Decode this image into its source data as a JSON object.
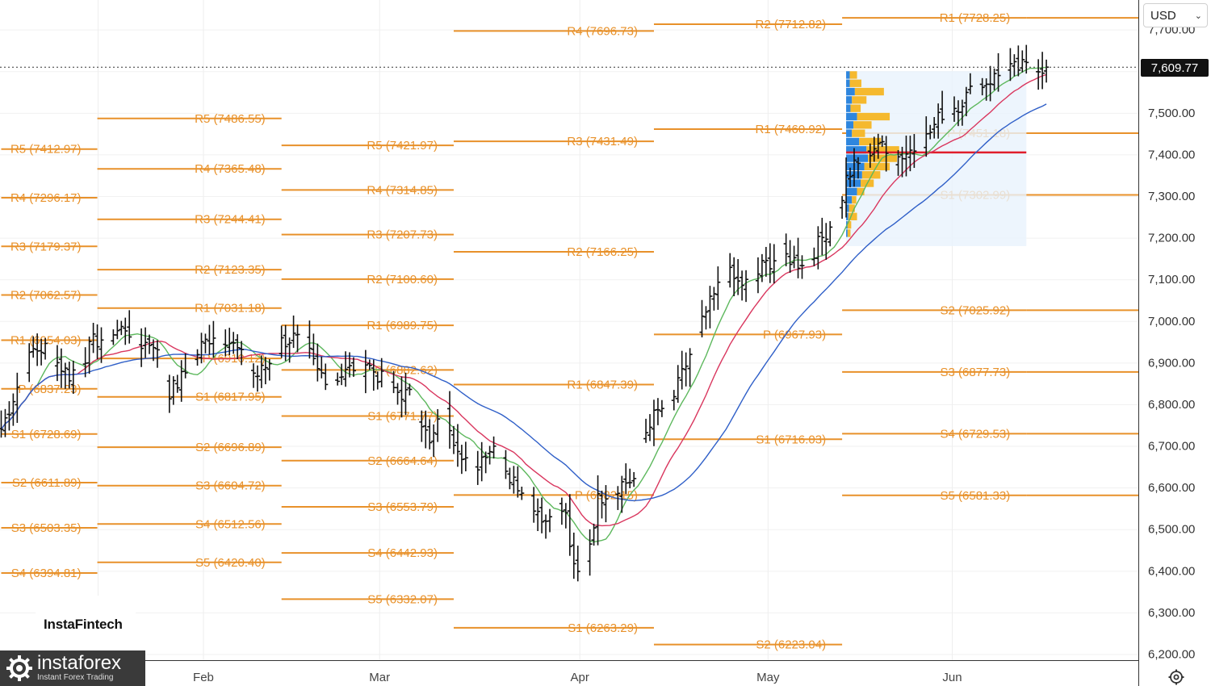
{
  "currency_selector": {
    "value": "USD",
    "icon": "chevron-down-icon"
  },
  "last_price": "7,609.77",
  "watermark": "InstaFintech",
  "logo": {
    "name": "instaforex",
    "tagline": "Instant Forex Trading"
  },
  "settings_icon": "gear-icon",
  "colors": {
    "pivot": "#e8912a",
    "ma_fast": "#5db85d",
    "ma_mid": "#d9365e",
    "ma_slow": "#2f5fc8",
    "poc": "#e01e2b",
    "vp_blue": "#2e86de",
    "vp_yellow": "#f5b92e",
    "bars": "#111111"
  },
  "chart_data": {
    "type": "bar",
    "subtype": "ohlc-with-pivot-levels",
    "y_range": [
      6180,
      7800
    ],
    "y_ticks": [
      "7,700.00",
      "7,600.00",
      "7,500.00",
      "7,400.00",
      "7,300.00",
      "7,200.00",
      "7,100.00",
      "7,000.00",
      "6,900.00",
      "6,800.00",
      "6,700.00",
      "6,600.00",
      "6,500.00",
      "6,400.00",
      "6,300.00",
      "6,200.00"
    ],
    "y_tick_values": [
      7700,
      7600,
      7500,
      7400,
      7300,
      7200,
      7100,
      7000,
      6900,
      6800,
      6700,
      6600,
      6500,
      6400,
      6300,
      6200
    ],
    "x_ticks": [
      "Feb",
      "Mar",
      "Apr",
      "May",
      "Jun"
    ],
    "x_tick_bars": [
      50.5,
      94.5,
      144.5,
      191.5,
      237.5
    ],
    "bar_count": 286,
    "last_price": 7609.77,
    "pivot_periods": [
      {
        "start_bar": 0,
        "end_bar": 24,
        "levels": [
          {
            "label": "R5 (7412.97)",
            "value": 7412.97
          },
          {
            "label": "R4 (7296.17)",
            "value": 7296.17
          },
          {
            "label": "R3 (7179.37)",
            "value": 7179.37
          },
          {
            "label": "R2 (7062.57)",
            "value": 7062.57
          },
          {
            "label": "R1 (6954.03)",
            "value": 6954.03
          },
          {
            "label": "P (6837.23)",
            "value": 6837.23
          },
          {
            "label": "S1 (6728.69)",
            "value": 6728.69
          },
          {
            "label": "S2 (6611.89)",
            "value": 6611.89
          },
          {
            "label": "S3 (6503.35)",
            "value": 6503.35
          },
          {
            "label": "S4 (6394.81)",
            "value": 6394.81
          }
        ]
      },
      {
        "start_bar": 24,
        "end_bar": 70,
        "levels": [
          {
            "label": "R5 (7486.55)",
            "value": 7486.55
          },
          {
            "label": "R4 (7365.48)",
            "value": 7365.48
          },
          {
            "label": "R3 (7244.41)",
            "value": 7244.41
          },
          {
            "label": "R2 (7123.35)",
            "value": 7123.35
          },
          {
            "label": "R1 (7031.18)",
            "value": 7031.18
          },
          {
            "label": "P (6910.12)",
            "value": 6910.12
          },
          {
            "label": "S1 (6817.95)",
            "value": 6817.95
          },
          {
            "label": "S2 (6696.89)",
            "value": 6696.89
          },
          {
            "label": "S3 (6604.72)",
            "value": 6604.72
          },
          {
            "label": "S4 (6512.56)",
            "value": 6512.56
          },
          {
            "label": "S5 (6420.40)",
            "value": 6420.4
          }
        ]
      },
      {
        "start_bar": 70,
        "end_bar": 113,
        "levels": [
          {
            "label": "R5 (7421.97)",
            "value": 7421.97
          },
          {
            "label": "R4 (7314.85)",
            "value": 7314.85
          },
          {
            "label": "R3 (7207.73)",
            "value": 7207.73
          },
          {
            "label": "R2 (7100.60)",
            "value": 7100.6
          },
          {
            "label": "R1 (6989.75)",
            "value": 6989.75
          },
          {
            "label": "P (6882.62)",
            "value": 6882.62
          },
          {
            "label": "S1 (6771.77)",
            "value": 6771.77
          },
          {
            "label": "S2 (6664.64)",
            "value": 6664.64
          },
          {
            "label": "S3 (6553.79)",
            "value": 6553.79
          },
          {
            "label": "S4 (6442.93)",
            "value": 6442.93
          },
          {
            "label": "S5 (6332.07)",
            "value": 6332.07
          }
        ]
      },
      {
        "start_bar": 113,
        "end_bar": 163,
        "levels": [
          {
            "label": "R4 (7696.73)",
            "value": 7696.73
          },
          {
            "label": "R3 (7431.49)",
            "value": 7431.49
          },
          {
            "label": "R2 (7166.25)",
            "value": 7166.25
          },
          {
            "label": "R1 (6847.39)",
            "value": 6847.39
          },
          {
            "label": "P (6582.15)",
            "value": 6582.15
          },
          {
            "label": "S1 (6263.29)",
            "value": 6263.29
          }
        ]
      },
      {
        "start_bar": 163,
        "end_bar": 210,
        "levels": [
          {
            "label": "R2 (7712.82)",
            "value": 7712.82
          },
          {
            "label": "R1 (7460.92)",
            "value": 7460.92
          },
          {
            "label": "P (6967.93)",
            "value": 6967.93
          },
          {
            "label": "S1 (6716.03)",
            "value": 6716.03
          },
          {
            "label": "S2 (6223.04)",
            "value": 6223.04
          }
        ]
      },
      {
        "start_bar": 210,
        "end_bar": 256,
        "levels": [
          {
            "label": "R1 (7728.25)",
            "value": 7728.25
          },
          {
            "label": "P (7451.18)",
            "value": 7451.18
          },
          {
            "label": "S1 (7302.99)",
            "value": 7302.99
          },
          {
            "label": "S2 (7025.92)",
            "value": 7025.92
          },
          {
            "label": "S3 (6877.73)",
            "value": 6877.73
          },
          {
            "label": "S4 (6729.53)",
            "value": 6729.53
          },
          {
            "label": "S5 (6581.33)",
            "value": 6581.33
          }
        ]
      },
      {
        "start_bar": 256,
        "end_bar": 286,
        "levels": [
          {
            "value": 7728.25
          },
          {
            "value": 7451.18
          },
          {
            "value": 7302.99
          },
          {
            "value": 7025.92
          },
          {
            "value": 6877.73
          },
          {
            "value": 6729.53
          },
          {
            "value": 6581.33
          }
        ]
      }
    ],
    "price_anchors": [
      [
        0,
        6740
      ],
      [
        2,
        6790
      ],
      [
        5,
        6870
      ],
      [
        8,
        6930
      ],
      [
        11,
        6935
      ],
      [
        14,
        6900
      ],
      [
        17,
        6870
      ],
      [
        20,
        6900
      ],
      [
        23,
        6950
      ],
      [
        26,
        6960
      ],
      [
        29,
        6975
      ],
      [
        31,
        6985
      ],
      [
        33,
        6965
      ],
      [
        35,
        6945
      ],
      [
        38,
        6950
      ],
      [
        40,
        6890
      ],
      [
        42,
        6830
      ],
      [
        44,
        6850
      ],
      [
        47,
        6890
      ],
      [
        50,
        6940
      ],
      [
        53,
        6970
      ],
      [
        56,
        6960
      ],
      [
        59,
        6930
      ],
      [
        62,
        6880
      ],
      [
        64,
        6870
      ],
      [
        67,
        6900
      ],
      [
        70,
        6950
      ],
      [
        73,
        6960
      ],
      [
        76,
        6940
      ],
      [
        79,
        6880
      ],
      [
        82,
        6860
      ],
      [
        85,
        6870
      ],
      [
        88,
        6890
      ],
      [
        91,
        6900
      ],
      [
        94,
        6870
      ],
      [
        96,
        6850
      ],
      [
        99,
        6830
      ],
      [
        102,
        6820
      ],
      [
        105,
        6760
      ],
      [
        107,
        6700
      ],
      [
        109,
        6750
      ],
      [
        111,
        6780
      ],
      [
        113,
        6720
      ],
      [
        116,
        6670
      ],
      [
        118,
        6640
      ],
      [
        121,
        6690
      ],
      [
        123,
        6700
      ],
      [
        125,
        6680
      ],
      [
        127,
        6620
      ],
      [
        130,
        6600
      ],
      [
        133,
        6560
      ],
      [
        136,
        6520
      ],
      [
        139,
        6560
      ],
      [
        141,
        6530
      ],
      [
        143,
        6400
      ],
      [
        145,
        6380
      ],
      [
        147,
        6470
      ],
      [
        149,
        6570
      ],
      [
        151,
        6590
      ],
      [
        153,
        6600
      ],
      [
        155,
        6610
      ],
      [
        158,
        6620
      ],
      [
        160,
        6710
      ],
      [
        162,
        6760
      ],
      [
        164,
        6780
      ],
      [
        166,
        6800
      ],
      [
        168,
        6820
      ],
      [
        170,
        6870
      ],
      [
        172,
        6920
      ],
      [
        174,
        6970
      ],
      [
        176,
        7020
      ],
      [
        178,
        7060
      ],
      [
        180,
        7100
      ],
      [
        182,
        7110
      ],
      [
        184,
        7090
      ],
      [
        186,
        7090
      ],
      [
        188,
        7100
      ],
      [
        190,
        7130
      ],
      [
        193,
        7150
      ],
      [
        195,
        7160
      ],
      [
        197,
        7150
      ],
      [
        199,
        7140
      ],
      [
        201,
        7150
      ],
      [
        203,
        7170
      ],
      [
        205,
        7200
      ],
      [
        207,
        7230
      ],
      [
        209,
        7260
      ],
      [
        211,
        7340
      ],
      [
        213,
        7370
      ],
      [
        215,
        7380
      ],
      [
        217,
        7410
      ],
      [
        219,
        7430
      ],
      [
        221,
        7400
      ],
      [
        223,
        7390
      ],
      [
        225,
        7400
      ],
      [
        227,
        7410
      ],
      [
        229,
        7420
      ],
      [
        231,
        7440
      ],
      [
        233,
        7470
      ],
      [
        235,
        7500
      ],
      [
        237,
        7510
      ],
      [
        239,
        7520
      ],
      [
        241,
        7540
      ],
      [
        243,
        7560
      ],
      [
        245,
        7570
      ],
      [
        247,
        7580
      ],
      [
        249,
        7590
      ],
      [
        251,
        7600
      ],
      [
        253,
        7605
      ],
      [
        255,
        7610
      ],
      [
        257,
        7608
      ],
      [
        259,
        7610
      ],
      [
        261,
        7609.77
      ]
    ],
    "volume_profile": {
      "price_range": [
        7180,
        7600
      ],
      "poc": 7405,
      "rows": [
        {
          "price": 7590,
          "blue": 0.05,
          "yellow": 0.1
        },
        {
          "price": 7570,
          "blue": 0.05,
          "yellow": 0.16
        },
        {
          "price": 7550,
          "blue": 0.12,
          "yellow": 0.4
        },
        {
          "price": 7530,
          "blue": 0.08,
          "yellow": 0.2
        },
        {
          "price": 7510,
          "blue": 0.06,
          "yellow": 0.14
        },
        {
          "price": 7490,
          "blue": 0.15,
          "yellow": 0.45
        },
        {
          "price": 7470,
          "blue": 0.1,
          "yellow": 0.25
        },
        {
          "price": 7450,
          "blue": 0.08,
          "yellow": 0.18
        },
        {
          "price": 7430,
          "blue": 0.18,
          "yellow": 0.3
        },
        {
          "price": 7410,
          "blue": 0.28,
          "yellow": 0.45
        },
        {
          "price": 7390,
          "blue": 0.3,
          "yellow": 0.4
        },
        {
          "price": 7370,
          "blue": 0.25,
          "yellow": 0.35
        },
        {
          "price": 7350,
          "blue": 0.22,
          "yellow": 0.25
        },
        {
          "price": 7330,
          "blue": 0.2,
          "yellow": 0.18
        },
        {
          "price": 7310,
          "blue": 0.15,
          "yellow": 0.1
        },
        {
          "price": 7290,
          "blue": 0.08,
          "yellow": 0.06
        },
        {
          "price": 7270,
          "blue": 0.04,
          "yellow": 0.08
        },
        {
          "price": 7250,
          "blue": 0.03,
          "yellow": 0.12
        },
        {
          "price": 7230,
          "blue": 0.02,
          "yellow": 0.05
        },
        {
          "price": 7210,
          "blue": 0.02,
          "yellow": 0.04
        }
      ]
    },
    "moving_averages": [
      {
        "name": "MA fast",
        "color": "#5db85d",
        "period": 10
      },
      {
        "name": "MA mid",
        "color": "#d9365e",
        "period": 20
      },
      {
        "name": "MA slow",
        "color": "#2f5fc8",
        "period": 40
      }
    ],
    "grid": true,
    "legend": "none"
  }
}
